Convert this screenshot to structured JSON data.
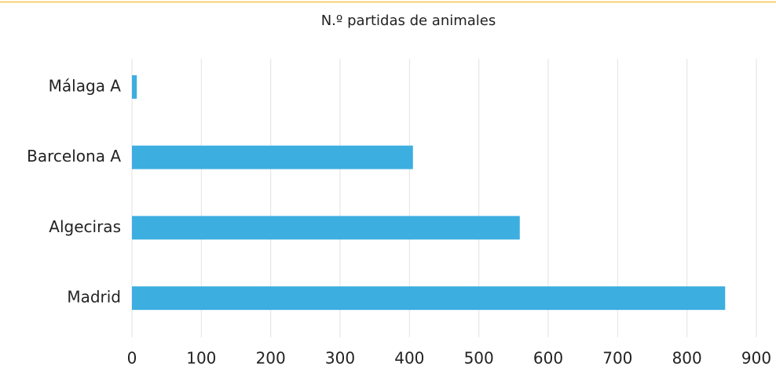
{
  "chart_data": {
    "type": "bar",
    "orientation": "horizontal",
    "title": "N.º partidas de animales",
    "categories": [
      "Málaga A",
      "Barcelona A",
      "Algeciras",
      "Madrid"
    ],
    "values": [
      7,
      405,
      559,
      855
    ],
    "color": "#3daee0",
    "xlim": [
      0,
      900
    ],
    "xticks": [
      0,
      100,
      200,
      300,
      400,
      500,
      600,
      700,
      800,
      900
    ],
    "grid": true
  }
}
